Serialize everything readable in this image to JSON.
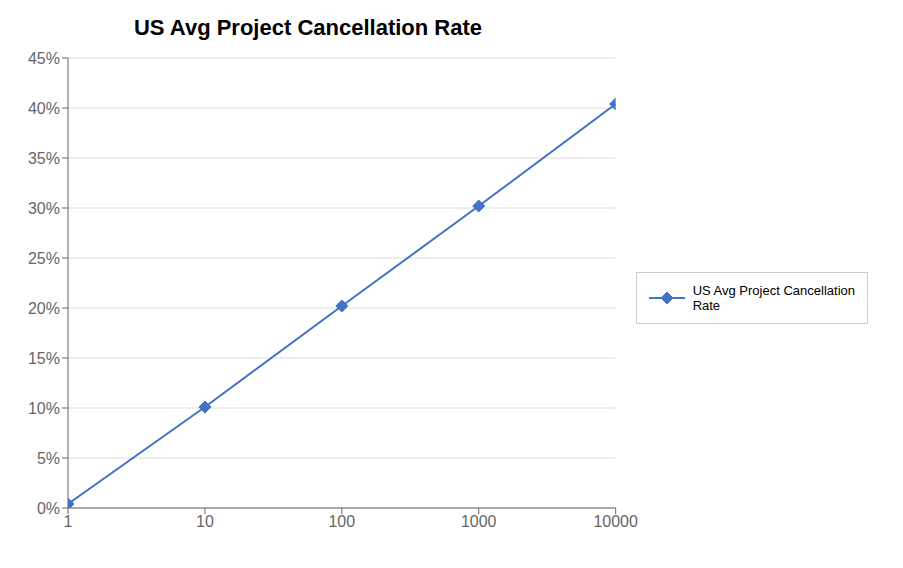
{
  "chart_data": {
    "type": "line",
    "title": "US Avg Project Cancellation Rate",
    "x": [
      1,
      10,
      100,
      1000,
      10000
    ],
    "series": [
      {
        "name": "US Avg Project Cancellation\nRate",
        "color": "#4472C4",
        "values": [
          0.004,
          0.101,
          0.202,
          0.302,
          0.404
        ],
        "marker": "diamond"
      }
    ],
    "log": "x",
    "xlim": [
      1,
      10000
    ],
    "xticks": [
      1,
      10,
      100,
      1000,
      10000
    ],
    "ylim": [
      0,
      0.45
    ],
    "yticks": [
      {
        "value": 0.0,
        "label": "0%"
      },
      {
        "value": 0.05,
        "label": "5%"
      },
      {
        "value": 0.1,
        "label": "10%"
      },
      {
        "value": 0.15,
        "label": "15%"
      },
      {
        "value": 0.2,
        "label": "20%"
      },
      {
        "value": 0.25,
        "label": "25%"
      },
      {
        "value": 0.3,
        "label": "30%"
      },
      {
        "value": 0.35,
        "label": "35%"
      },
      {
        "value": 0.4,
        "label": "40%"
      },
      {
        "value": 0.45,
        "label": "45%"
      }
    ],
    "grid": true,
    "legend": "right"
  }
}
